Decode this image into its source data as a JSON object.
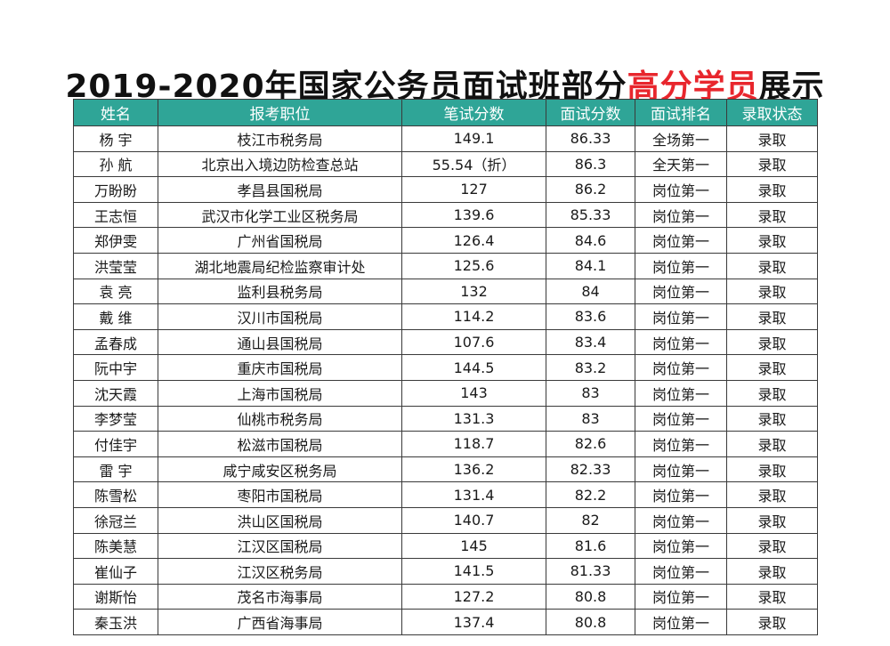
{
  "title": {
    "prefix": "2019-2020年国家公务员面试班部分",
    "highlight": "高分学员",
    "suffix": "展示"
  },
  "colors": {
    "header_bg": "#2fa597",
    "accent_red": "#e8262d"
  },
  "table": {
    "headers": [
      "姓名",
      "报考职位",
      "笔试分数",
      "面试分数",
      "面试排名",
      "录取状态"
    ],
    "rows": [
      {
        "name": "杨  宇",
        "position": "枝江市税务局",
        "written": "149.1",
        "interview": "86.33",
        "rank": "全场第一",
        "status": "录取"
      },
      {
        "name": "孙  航",
        "position": "北京出入境边防检查总站",
        "written": "55.54（折）",
        "interview": "86.3",
        "rank": "全天第一",
        "status": "录取"
      },
      {
        "name": "万盼盼",
        "position": "孝昌县国税局",
        "written": "127",
        "interview": "86.2",
        "rank": "岗位第一",
        "status": "录取"
      },
      {
        "name": "王志恒",
        "position": "武汉市化学工业区税务局",
        "written": "139.6",
        "interview": "85.33",
        "rank": "岗位第一",
        "status": "录取"
      },
      {
        "name": "郑伊雯",
        "position": "广州省国税局",
        "written": "126.4",
        "interview": "84.6",
        "rank": "岗位第一",
        "status": "录取"
      },
      {
        "name": "洪莹莹",
        "position": "湖北地震局纪检监察审计处",
        "written": "125.6",
        "interview": "84.1",
        "rank": "岗位第一",
        "status": "录取"
      },
      {
        "name": "袁  亮",
        "position": "监利县税务局",
        "written": "132",
        "interview": "84",
        "rank": "岗位第一",
        "status": "录取"
      },
      {
        "name": "戴  维",
        "position": "汉川市国税局",
        "written": "114.2",
        "interview": "83.6",
        "rank": "岗位第一",
        "status": "录取"
      },
      {
        "name": "孟春成",
        "position": "通山县国税局",
        "written": "107.6",
        "interview": "83.4",
        "rank": "岗位第一",
        "status": "录取"
      },
      {
        "name": "阮中宇",
        "position": "重庆市国税局",
        "written": "144.5",
        "interview": "83.2",
        "rank": "岗位第一",
        "status": "录取"
      },
      {
        "name": "沈天霞",
        "position": "上海市国税局",
        "written": "143",
        "interview": "83",
        "rank": "岗位第一",
        "status": "录取"
      },
      {
        "name": "李梦莹",
        "position": "仙桃市税务局",
        "written": "131.3",
        "interview": "83",
        "rank": "岗位第一",
        "status": "录取"
      },
      {
        "name": "付佳宇",
        "position": "松滋市国税局",
        "written": "118.7",
        "interview": "82.6",
        "rank": "岗位第一",
        "status": "录取"
      },
      {
        "name": "雷  宇",
        "position": "咸宁咸安区税务局",
        "written": "136.2",
        "interview": "82.33",
        "rank": "岗位第一",
        "status": "录取"
      },
      {
        "name": "陈雪松",
        "position": "枣阳市国税局",
        "written": "131.4",
        "interview": "82.2",
        "rank": "岗位第一",
        "status": "录取"
      },
      {
        "name": "徐冠兰",
        "position": "洪山区国税局",
        "written": "140.7",
        "interview": "82",
        "rank": "岗位第一",
        "status": "录取"
      },
      {
        "name": "陈美慧",
        "position": "江汉区国税局",
        "written": "145",
        "interview": "81.6",
        "rank": "岗位第一",
        "status": "录取"
      },
      {
        "name": "崔仙子",
        "position": "江汉区税务局",
        "written": "141.5",
        "interview": "81.33",
        "rank": "岗位第一",
        "status": "录取"
      },
      {
        "name": "谢斯怡",
        "position": "茂名市海事局",
        "written": "127.2",
        "interview": "80.8",
        "rank": "岗位第一",
        "status": "录取"
      },
      {
        "name": "秦玉洪",
        "position": "广西省海事局",
        "written": "137.4",
        "interview": "80.8",
        "rank": "岗位第一",
        "status": "录取"
      }
    ]
  }
}
